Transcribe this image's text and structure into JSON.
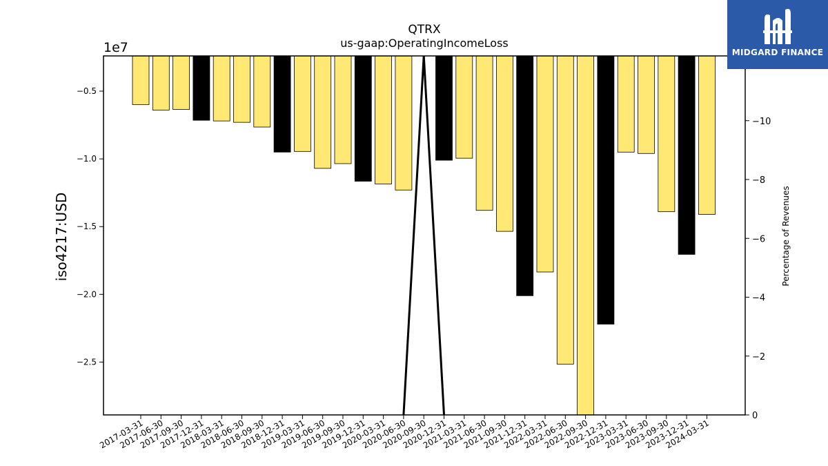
{
  "chart_data": {
    "type": "bar",
    "title": "QTRX",
    "subtitle": "us-gaap:OperatingIncomeLoss",
    "ylabel": "iso4217:USD",
    "y_offset_label": "1e7",
    "y2label": "Percentage of Revenues",
    "ylim": [
      -28900000,
      -2400000
    ],
    "y2lim": [
      0,
      -12.2
    ],
    "y_ticks": [
      -5000000,
      -10000000,
      -15000000,
      -20000000,
      -25000000
    ],
    "y_tick_labels": [
      "−0.5",
      "−1.0",
      "−1.5",
      "−2.0",
      "−2.5"
    ],
    "y2_ticks": [
      -10,
      -8,
      -6,
      -4,
      -2,
      0
    ],
    "y2_tick_labels": [
      "−10",
      "−8",
      "−6",
      "−4",
      "−2",
      "0"
    ],
    "categories": [
      "2017-03-31",
      "2017-06-30",
      "2017-09-30",
      "2017-12-31",
      "2018-03-31",
      "2018-06-30",
      "2018-09-30",
      "2018-12-31",
      "2019-03-31",
      "2019-06-30",
      "2019-09-30",
      "2019-12-31",
      "2020-03-31",
      "2020-06-30",
      "2020-09-30",
      "2020-12-31",
      "2021-03-31",
      "2021-06-30",
      "2021-09-30",
      "2021-12-31",
      "2022-03-31",
      "2022-06-30",
      "2022-09-30",
      "2022-12-31",
      "2023-03-31",
      "2023-06-30",
      "2023-09-30",
      "2023-12-31",
      "2024-03-31"
    ],
    "values": [
      -6000000,
      -6400000,
      -6350000,
      -7150000,
      -7200000,
      -7300000,
      -7650000,
      -9500000,
      -9450000,
      -10700000,
      -10350000,
      -11650000,
      -11850000,
      -12300000,
      null,
      -10100000,
      -9950000,
      -13800000,
      -15350000,
      -20100000,
      -18350000,
      -25150000,
      -28900000,
      -22200000,
      -9500000,
      -9600000,
      -13900000,
      -17050000,
      -14100000
    ],
    "bar_types": [
      "quarter",
      "quarter",
      "quarter",
      "annual",
      "quarter",
      "quarter",
      "quarter",
      "annual",
      "quarter",
      "quarter",
      "quarter",
      "annual",
      "quarter",
      "quarter",
      "quarter",
      "annual",
      "quarter",
      "quarter",
      "quarter",
      "annual",
      "quarter",
      "quarter",
      "quarter",
      "annual",
      "quarter",
      "quarter",
      "quarter",
      "annual",
      "quarter"
    ],
    "percent_line": {
      "points": [
        {
          "category": "2020-06-30",
          "value": 0
        },
        {
          "category": "2020-09-30",
          "value": -12.2
        },
        {
          "category": "2020-12-31",
          "value": 0
        }
      ]
    },
    "grid": false
  },
  "colors": {
    "quarter_bar": "#ffe873",
    "annual_bar": "#000000",
    "bar_edge": "#000000",
    "percent_line": "#000000",
    "logo_bg": "#2a5aa8",
    "logo_fg": "#ffffff"
  },
  "logo": {
    "text": "MIDGARD FINANCE",
    "icon": "midgard-logo-icon"
  }
}
